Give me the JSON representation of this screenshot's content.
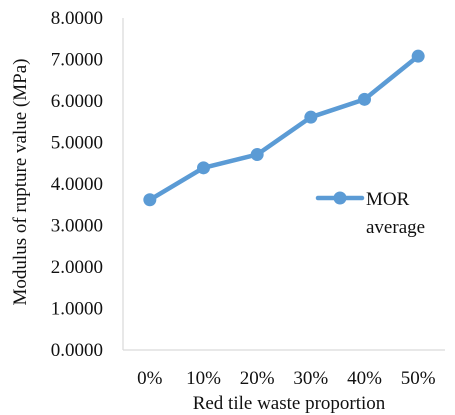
{
  "chart_data": {
    "type": "line",
    "categories": [
      "0%",
      "10%",
      "20%",
      "30%",
      "40%",
      "50%"
    ],
    "series": [
      {
        "name": "MOR average",
        "legend_lines": [
          "MOR",
          "average"
        ],
        "values": [
          3.62,
          4.39,
          4.71,
          5.61,
          6.04,
          7.08
        ],
        "color": "#5b9bd5"
      }
    ],
    "xlabel": "Red tile waste proportion",
    "ylabel": "Modulus of rupture value (MPa)",
    "ylim": [
      0,
      8
    ],
    "yticks": [
      "0.0000",
      "1.0000",
      "2.0000",
      "3.0000",
      "4.0000",
      "5.0000",
      "6.0000",
      "7.0000",
      "8.0000"
    ],
    "grid": false,
    "legend_position": "right"
  },
  "colors": {
    "series_line": "#5b9bd5",
    "axis_line": "#d9d9d9",
    "text": "#111111"
  }
}
